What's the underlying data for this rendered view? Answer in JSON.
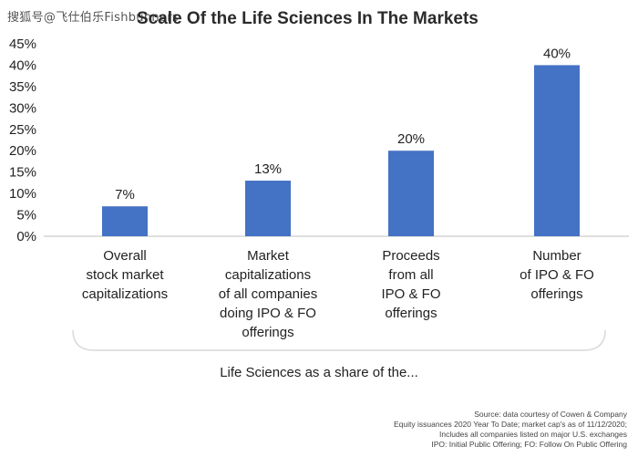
{
  "watermark": "搜狐号@飞仕伯乐Fishbunners",
  "chart_data": {
    "type": "bar",
    "title": "Scale Of the Life Sciences In The Markets",
    "categories": [
      "Overall stock market capitalizations",
      "Market capitalizations of all companies doing IPO & FO offerings",
      "Proceeds from all IPO & FO offerings",
      "Number of IPO & FO offerings"
    ],
    "category_lines": [
      [
        "Overall",
        "stock market",
        "capitalizations"
      ],
      [
        "Market",
        "capitalizations",
        "of all companies",
        "doing IPO & FO",
        "offerings"
      ],
      [
        "Proceeds",
        "from all",
        "IPO & FO",
        "offerings"
      ],
      [
        "Number",
        "of IPO & FO",
        "offerings"
      ]
    ],
    "values": [
      7,
      13,
      20,
      40
    ],
    "data_labels": [
      "7%",
      "13%",
      "20%",
      "40%"
    ],
    "ylim": [
      0,
      45
    ],
    "yticks": [
      0,
      5,
      10,
      15,
      20,
      25,
      30,
      35,
      40,
      45
    ],
    "ytick_labels": [
      "0%",
      "5%",
      "10%",
      "15%",
      "20%",
      "25%",
      "30%",
      "35%",
      "40%",
      "45%"
    ],
    "bar_color": "#4472C4",
    "grid": false,
    "xlabel": "Life Sciences as a share of the...",
    "ylabel": ""
  },
  "source_lines": [
    "Source: data courtesy of Cowen & Company",
    "Equity issuances 2020 Year To Date; market cap's as of 11/12/2020;",
    "Includes all companies listed on major U.S. exchanges",
    "IPO: Initial Public Offering; FO: Follow On Public Offering"
  ]
}
